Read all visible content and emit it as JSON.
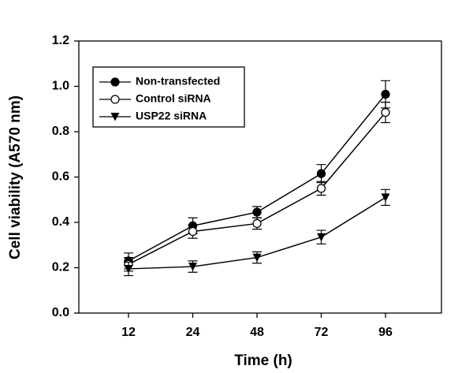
{
  "chart_data": {
    "type": "line",
    "x_label": "Time (h)",
    "y_label": "Cell viability (A570 nm)",
    "categories": [
      "12",
      "24",
      "48",
      "72",
      "96"
    ],
    "series": [
      {
        "name": "Non-transfected",
        "color": "#000000",
        "marker": "circle",
        "values": [
          0.23,
          0.385,
          0.445,
          0.615,
          0.965
        ],
        "errors": [
          0.035,
          0.035,
          0.025,
          0.04,
          0.06
        ]
      },
      {
        "name": "Control siRNA",
        "color": "#000000",
        "marker": "circle-open",
        "values": [
          0.215,
          0.36,
          0.395,
          0.55,
          0.885
        ],
        "errors": [
          0.03,
          0.03,
          0.025,
          0.03,
          0.045
        ]
      },
      {
        "name": "USP22 siRNA",
        "color": "#000000",
        "marker": "triangle-down",
        "values": [
          0.195,
          0.205,
          0.245,
          0.335,
          0.51
        ],
        "errors": [
          0.03,
          0.025,
          0.025,
          0.03,
          0.035
        ]
      }
    ],
    "ylim": [
      0,
      1.2
    ],
    "yticks": [
      {
        "value": 0,
        "label": "0.0"
      },
      {
        "value": 0.2,
        "label": "0.2"
      },
      {
        "value": 0.4,
        "label": "0.4"
      },
      {
        "value": 0.6,
        "label": "0.6"
      },
      {
        "value": 0.8,
        "label": "0.8"
      },
      {
        "value": 1.0,
        "label": "1.0"
      },
      {
        "value": 1.2,
        "label": "1.2"
      }
    ],
    "legend": "upper-left",
    "grid": false
  }
}
